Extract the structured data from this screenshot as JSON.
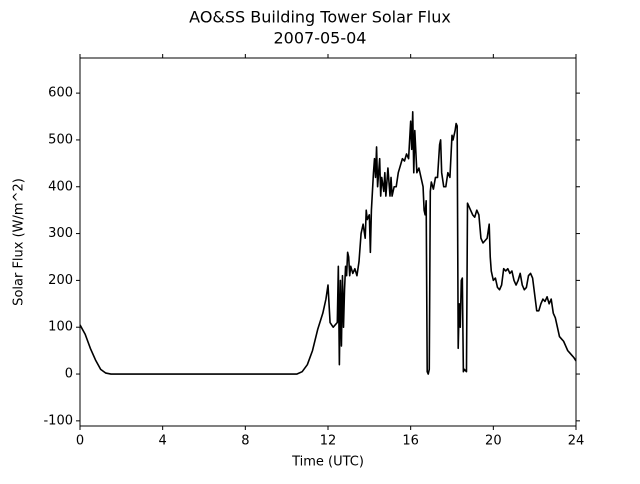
{
  "chart_data": {
    "type": "line",
    "title": "AO&SS Building Tower Solar Flux",
    "subtitle": "2007-05-04",
    "x_label": "Time (UTC)",
    "y_label": "Solar Flux (W/m^2)",
    "xlim": [
      0,
      24
    ],
    "xticks": [
      0,
      4,
      8,
      12,
      16,
      20,
      24
    ],
    "ylim": [
      -111,
      675
    ],
    "yticks": [
      -100,
      0,
      100,
      200,
      300,
      400,
      500,
      600
    ],
    "series": [
      {
        "color": "#000000",
        "x": [
          0,
          0.25,
          0.5,
          0.75,
          1.0,
          1.25,
          1.5,
          10.5,
          10.75,
          11.0,
          11.25,
          11.5,
          11.75,
          11.9,
          12.0,
          12.05,
          12.1,
          12.25,
          12.45,
          12.5,
          12.55,
          12.6,
          12.65,
          12.7,
          12.75,
          12.8,
          12.85,
          12.9,
          12.95,
          13.0,
          13.05,
          13.1,
          13.2,
          13.3,
          13.4,
          13.5,
          13.6,
          13.7,
          13.8,
          13.85,
          13.9,
          14.0,
          14.05,
          14.1,
          14.2,
          14.25,
          14.3,
          14.35,
          14.4,
          14.5,
          14.55,
          14.6,
          14.7,
          14.75,
          14.8,
          14.9,
          15.0,
          15.05,
          15.1,
          15.2,
          15.3,
          15.4,
          15.5,
          15.6,
          15.7,
          15.8,
          15.9,
          16.0,
          16.05,
          16.1,
          16.15,
          16.2,
          16.3,
          16.4,
          16.5,
          16.6,
          16.65,
          16.7,
          16.75,
          16.8,
          16.85,
          16.9,
          16.95,
          17.0,
          17.1,
          17.2,
          17.3,
          17.4,
          17.45,
          17.5,
          17.6,
          17.7,
          17.8,
          17.9,
          18.0,
          18.05,
          18.15,
          18.2,
          18.25,
          18.3,
          18.35,
          18.4,
          18.45,
          18.5,
          18.55,
          18.6,
          18.7,
          18.75,
          18.9,
          19.0,
          19.1,
          19.2,
          19.3,
          19.4,
          19.5,
          19.6,
          19.7,
          19.8,
          19.85,
          19.9,
          20.0,
          20.1,
          20.2,
          20.3,
          20.4,
          20.5,
          20.6,
          20.7,
          20.8,
          20.9,
          21.0,
          21.1,
          21.2,
          21.3,
          21.4,
          21.5,
          21.6,
          21.7,
          21.8,
          21.9,
          22.0,
          22.1,
          22.2,
          22.3,
          22.4,
          22.5,
          22.6,
          22.7,
          22.8,
          22.9,
          23.0,
          23.1,
          23.2,
          23.3,
          23.4,
          23.5,
          23.6,
          23.7,
          23.8,
          23.9,
          24.0
        ],
        "values": [
          105,
          85,
          55,
          30,
          10,
          2,
          0,
          0,
          5,
          20,
          50,
          95,
          130,
          160,
          190,
          150,
          110,
          100,
          110,
          230,
          20,
          200,
          60,
          210,
          100,
          180,
          230,
          210,
          260,
          250,
          210,
          230,
          215,
          225,
          210,
          240,
          300,
          320,
          290,
          350,
          330,
          340,
          260,
          350,
          430,
          460,
          420,
          485,
          400,
          460,
          380,
          420,
          390,
          430,
          380,
          440,
          380,
          420,
          380,
          400,
          400,
          430,
          445,
          460,
          455,
          470,
          460,
          540,
          480,
          560,
          430,
          520,
          430,
          440,
          420,
          400,
          350,
          340,
          370,
          5,
          0,
          10,
          390,
          410,
          395,
          420,
          420,
          490,
          500,
          430,
          400,
          400,
          430,
          420,
          510,
          500,
          520,
          535,
          530,
          55,
          150,
          100,
          200,
          205,
          5,
          10,
          5,
          365,
          350,
          340,
          335,
          350,
          340,
          290,
          280,
          285,
          290,
          320,
          250,
          220,
          200,
          205,
          185,
          180,
          190,
          225,
          220,
          225,
          215,
          220,
          200,
          190,
          200,
          215,
          190,
          180,
          185,
          210,
          215,
          205,
          170,
          135,
          135,
          150,
          160,
          155,
          165,
          150,
          160,
          130,
          120,
          100,
          80,
          75,
          70,
          60,
          50,
          45,
          40,
          35,
          28
        ]
      }
    ]
  }
}
